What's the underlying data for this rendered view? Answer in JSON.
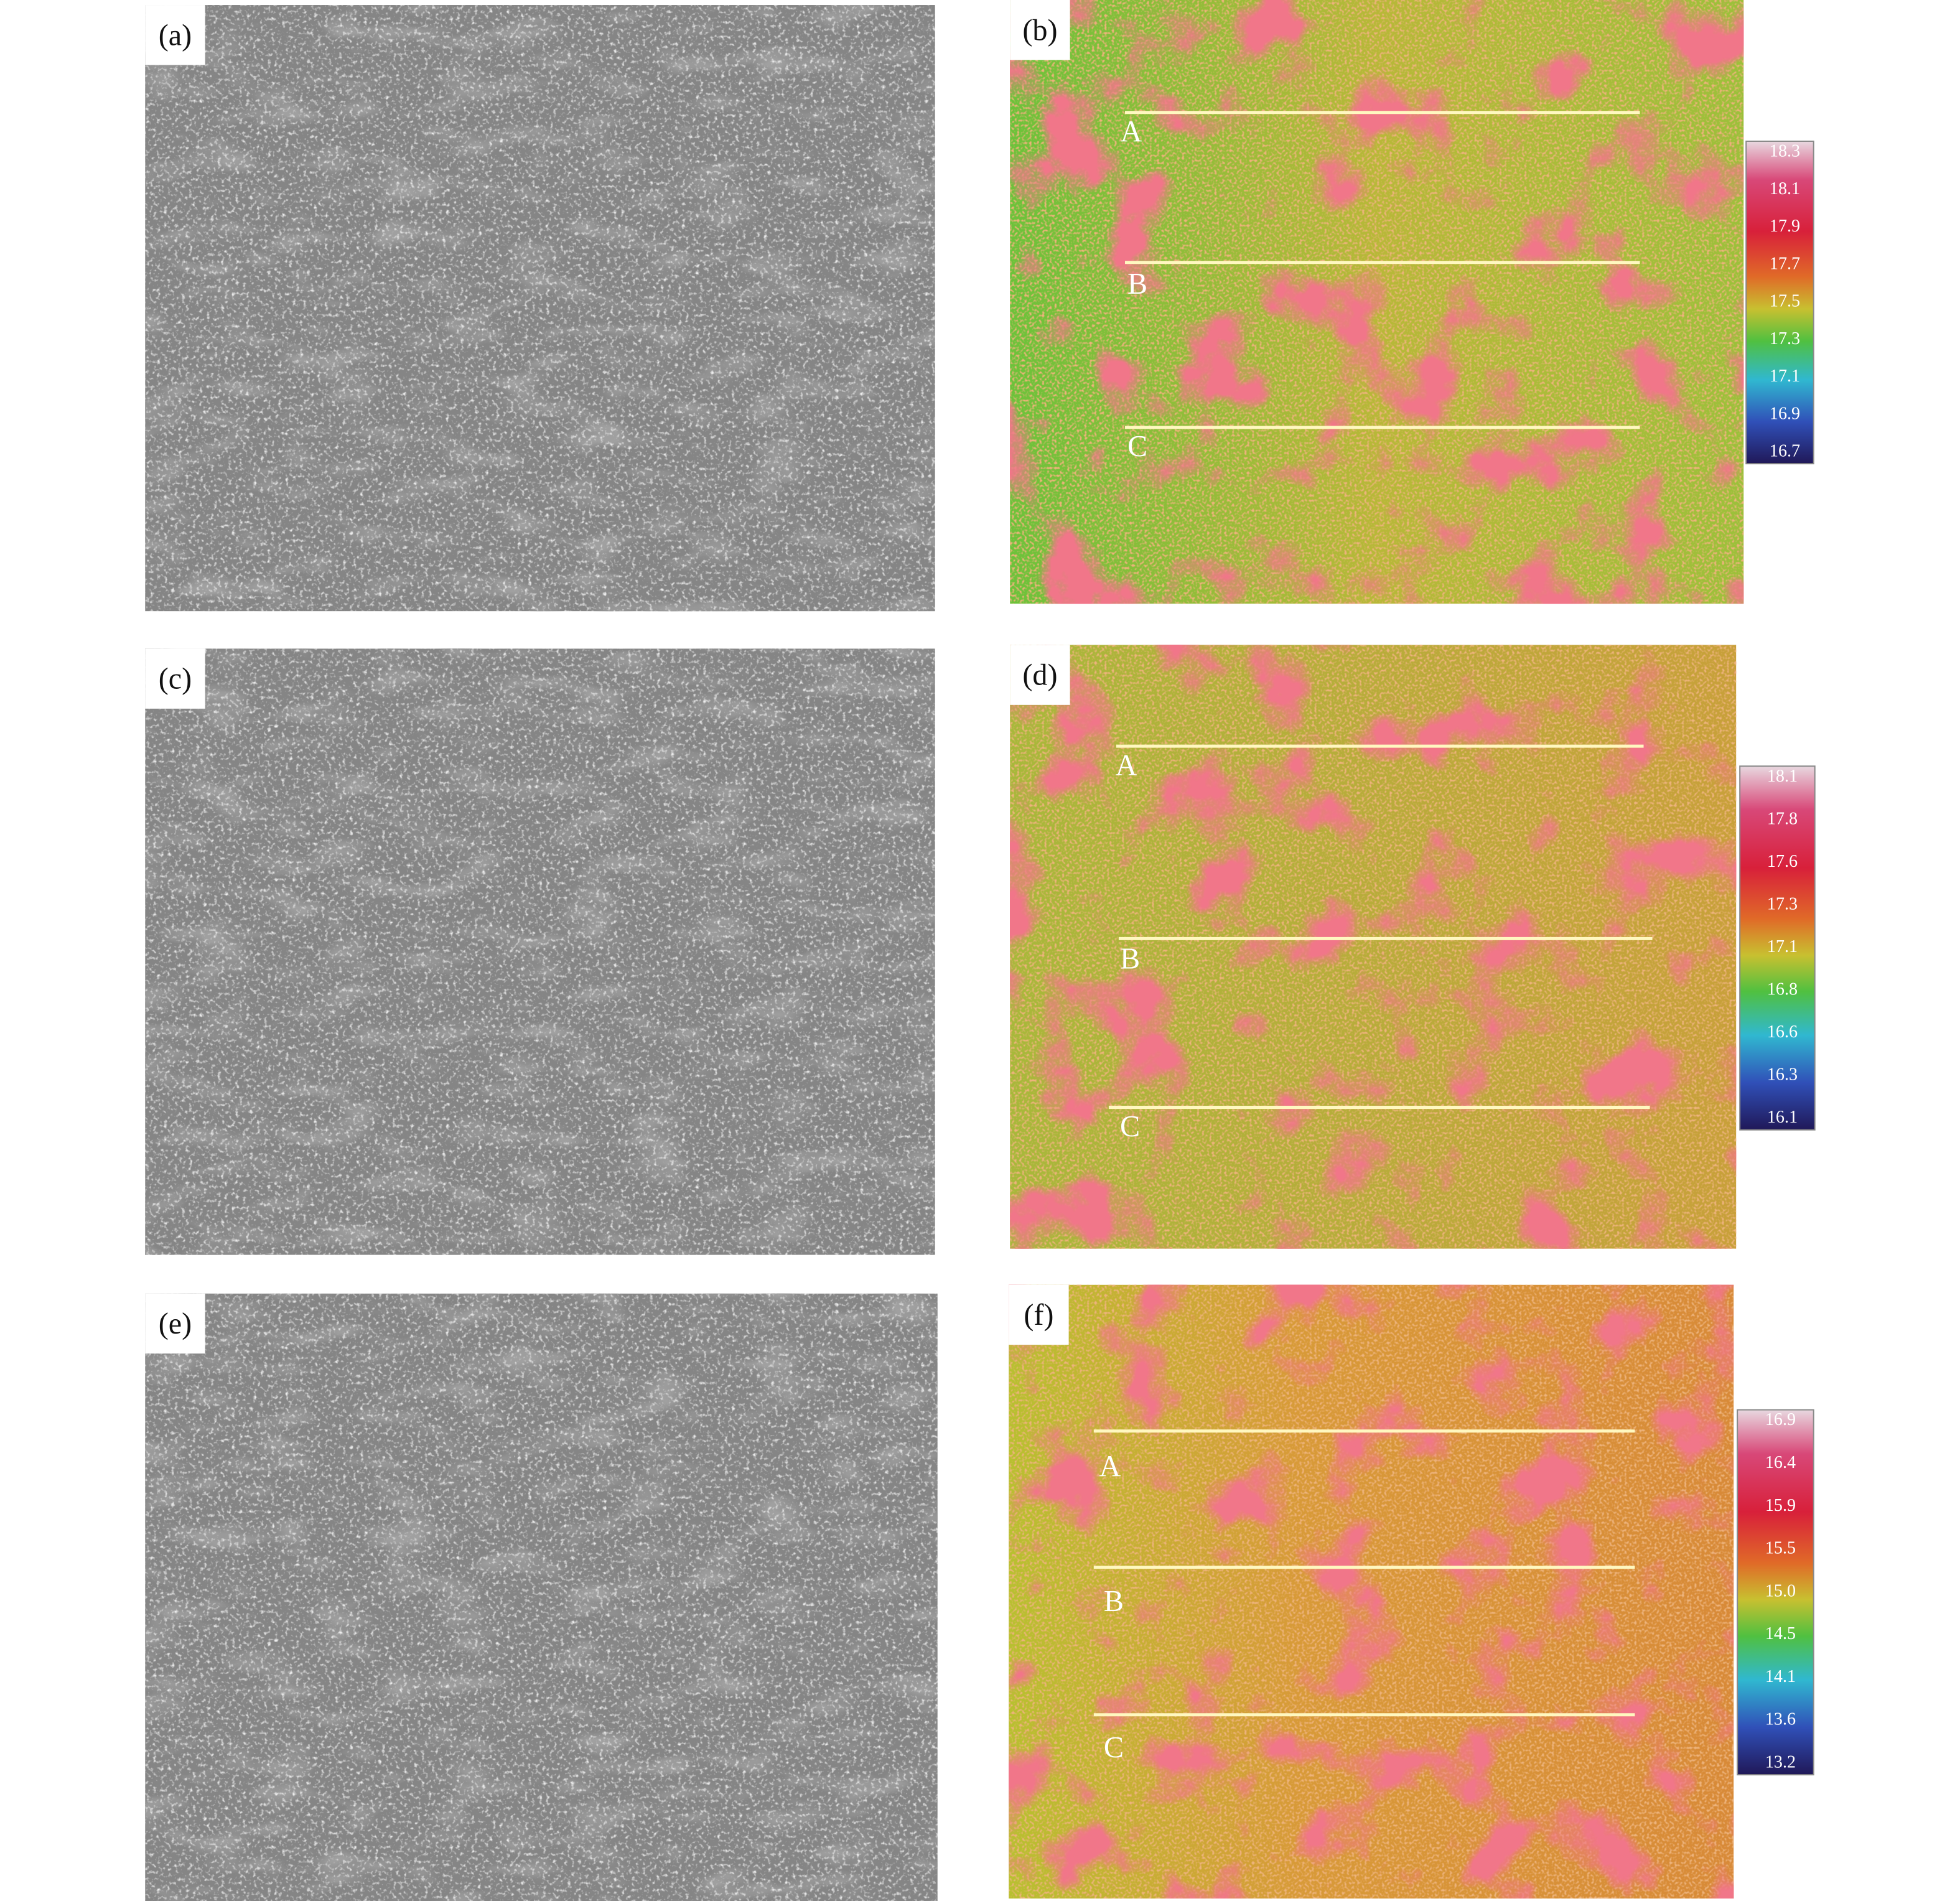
{
  "panels": [
    {
      "label": "(a)"
    },
    {
      "label": "(b)",
      "lines": [
        "A",
        "B",
        "C"
      ],
      "colorbar": [
        "18.3",
        "18.1",
        "17.9",
        "17.7",
        "17.5",
        "17.3",
        "17.1",
        "16.9",
        "16.7"
      ]
    },
    {
      "label": "(c)"
    },
    {
      "label": "(d)",
      "lines": [
        "A",
        "B",
        "C"
      ],
      "colorbar": [
        "18.1",
        "17.8",
        "17.6",
        "17.3",
        "17.1",
        "16.8",
        "16.6",
        "16.3",
        "16.1"
      ]
    },
    {
      "label": "(e)"
    },
    {
      "label": "(f)",
      "lines": [
        "A",
        "B",
        "C"
      ],
      "colorbar": [
        "16.9",
        "16.4",
        "15.9",
        "15.5",
        "15.0",
        "14.5",
        "14.1",
        "13.6",
        "13.2"
      ]
    }
  ]
}
